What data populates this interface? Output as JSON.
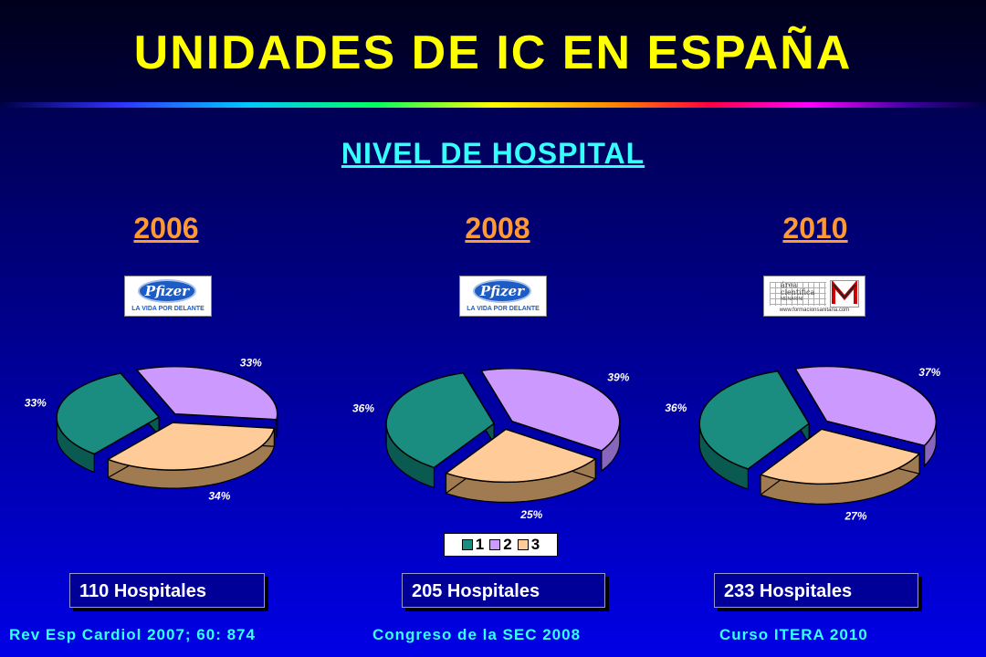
{
  "title": "UNIDADES DE IC EN ESPAÑA",
  "subtitle": "NIVEL DE HOSPITAL",
  "logos": {
    "pfizer_brand": "Pfizer",
    "pfizer_tagline": "LA VIDA POR DELANTE",
    "area_line1": "área",
    "area_line2": "científica",
    "area_line3": "MENARINI",
    "area_web": "www.formacionsanitaria.com"
  },
  "colors": {
    "series1": "#1a8c80",
    "series2": "#cc99ff",
    "series3": "#ffcc99",
    "title": "#ffff00",
    "subtitle": "#33ffff",
    "year": "#ff9933"
  },
  "chart_data": [
    {
      "type": "pie",
      "title": "2006",
      "categories": [
        "1",
        "2",
        "3"
      ],
      "values": [
        33,
        33,
        34
      ],
      "labels": [
        "33%",
        "33%",
        "34%"
      ],
      "hospitals": "110 Hospitales",
      "source": "Rev Esp Cardiol 2007; 60: 874",
      "logo": "pfizer"
    },
    {
      "type": "pie",
      "title": "2008",
      "categories": [
        "1",
        "2",
        "3"
      ],
      "values": [
        36,
        39,
        25
      ],
      "labels": [
        "36%",
        "39%",
        "25%"
      ],
      "hospitals": "205 Hospitales",
      "source": "Congreso de la SEC 2008",
      "logo": "pfizer"
    },
    {
      "type": "pie",
      "title": "2010",
      "categories": [
        "1",
        "2",
        "3"
      ],
      "values": [
        36,
        37,
        27
      ],
      "labels": [
        "36%",
        "37%",
        "27%"
      ],
      "hospitals": "233 Hospitales",
      "source": "Curso ITERA 2010",
      "logo": "area"
    }
  ],
  "legend": {
    "items": [
      "1",
      "2",
      "3"
    ],
    "placement": "bottom-center"
  }
}
